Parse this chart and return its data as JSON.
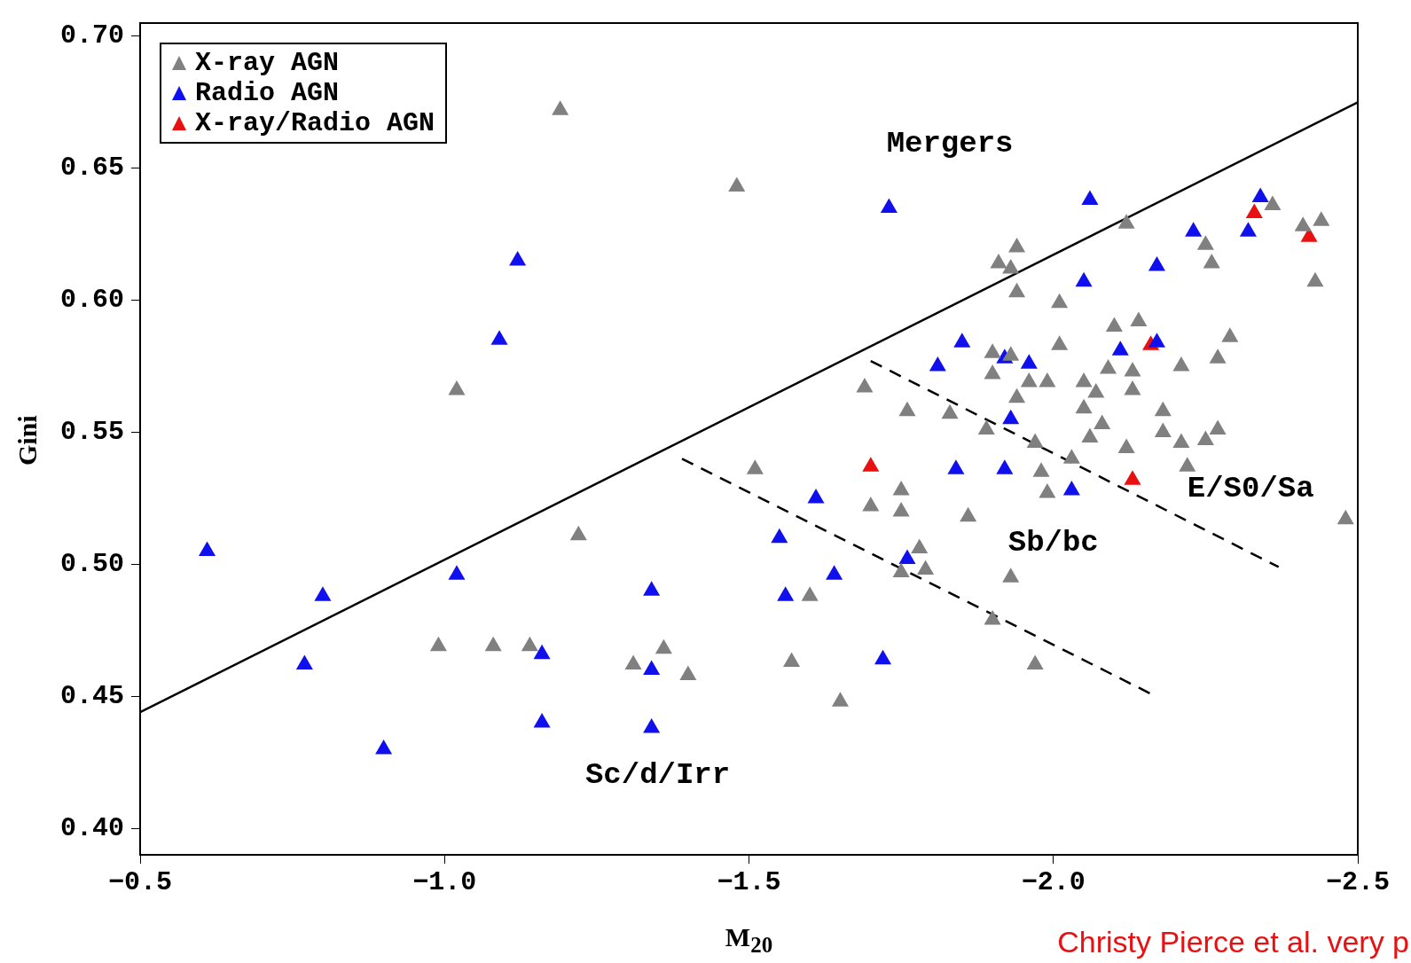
{
  "chart_data": {
    "type": "scatter",
    "xlabel": "M$_{20}$",
    "ylabel": "Gini",
    "xlim": [
      -0.5,
      -2.5
    ],
    "ylim": [
      0.39,
      0.705
    ],
    "xticks": [
      {
        "value": -0.5,
        "label": "−0.5"
      },
      {
        "value": -1.0,
        "label": "−1.0"
      },
      {
        "value": -1.5,
        "label": "−1.5"
      },
      {
        "value": -2.0,
        "label": "−2.0"
      },
      {
        "value": -2.5,
        "label": "−2.5"
      }
    ],
    "yticks": [
      {
        "value": 0.4,
        "label": "0.40"
      },
      {
        "value": 0.45,
        "label": "0.45"
      },
      {
        "value": 0.5,
        "label": "0.50"
      },
      {
        "value": 0.55,
        "label": "0.55"
      },
      {
        "value": 0.6,
        "label": "0.60"
      },
      {
        "value": 0.65,
        "label": "0.65"
      },
      {
        "value": 0.7,
        "label": "0.70"
      }
    ],
    "grid": false,
    "legend": "top left",
    "marker": "triangle",
    "series": [
      {
        "name": "X-ray AGN",
        "color": "#808080",
        "x": [
          -1.19,
          -1.48,
          -1.02,
          -0.99,
          -1.08,
          -1.14,
          -1.31,
          -1.36,
          -1.4,
          -1.22,
          -1.51,
          -1.57,
          -1.6,
          -1.65,
          -1.69,
          -1.7,
          -1.75,
          -1.75,
          -1.76,
          -1.78,
          -1.79,
          -1.75,
          -1.83,
          -1.86,
          -1.89,
          -1.9,
          -1.9,
          -1.9,
          -1.91,
          -1.94,
          -1.93,
          -1.94,
          -1.93,
          -1.94,
          -1.96,
          -1.93,
          -1.97,
          -1.99,
          -1.98,
          -1.99,
          -1.97,
          -2.01,
          -2.01,
          -2.03,
          -2.05,
          -2.05,
          -2.06,
          -2.08,
          -2.07,
          -2.09,
          -2.1,
          -2.13,
          -2.13,
          -2.14,
          -2.12,
          -2.12,
          -2.18,
          -2.18,
          -2.21,
          -2.21,
          -2.22,
          -2.25,
          -2.27,
          -2.27,
          -2.29,
          -2.25,
          -2.26,
          -2.36,
          -2.41,
          -2.44,
          -2.43,
          -2.48
        ],
        "values": [
          0.672,
          0.643,
          0.566,
          0.469,
          0.469,
          0.469,
          0.462,
          0.468,
          0.458,
          0.511,
          0.536,
          0.463,
          0.488,
          0.448,
          0.567,
          0.522,
          0.528,
          0.52,
          0.558,
          0.506,
          0.498,
          0.497,
          0.557,
          0.518,
          0.551,
          0.572,
          0.58,
          0.479,
          0.614,
          0.62,
          0.612,
          0.603,
          0.579,
          0.563,
          0.569,
          0.495,
          0.546,
          0.569,
          0.535,
          0.527,
          0.462,
          0.583,
          0.599,
          0.54,
          0.559,
          0.569,
          0.548,
          0.553,
          0.565,
          0.574,
          0.59,
          0.566,
          0.573,
          0.592,
          0.544,
          0.629,
          0.558,
          0.55,
          0.575,
          0.546,
          0.537,
          0.547,
          0.551,
          0.578,
          0.586,
          0.621,
          0.614,
          0.636,
          0.628,
          0.63,
          0.607,
          0.517
        ]
      },
      {
        "name": "Radio AGN",
        "color": "#1010ee",
        "x": [
          -0.61,
          -0.8,
          -0.77,
          -0.9,
          -1.02,
          -1.12,
          -1.09,
          -1.16,
          -1.16,
          -1.34,
          -1.34,
          -1.34,
          -1.73,
          -1.55,
          -1.56,
          -1.61,
          -1.64,
          -1.72,
          -1.76,
          -1.84,
          -1.85,
          -1.81,
          -1.92,
          -1.93,
          -1.92,
          -1.96,
          -2.06,
          -2.05,
          -2.03,
          -2.11,
          -2.17,
          -2.17,
          -2.23,
          -2.32,
          -2.34
        ],
        "values": [
          0.505,
          0.488,
          0.462,
          0.43,
          0.496,
          0.615,
          0.585,
          0.466,
          0.44,
          0.49,
          0.46,
          0.438,
          0.635,
          0.51,
          0.488,
          0.525,
          0.496,
          0.464,
          0.502,
          0.536,
          0.584,
          0.575,
          0.578,
          0.555,
          0.536,
          0.576,
          0.638,
          0.607,
          0.528,
          0.581,
          0.613,
          0.584,
          0.626,
          0.626,
          0.639
        ]
      },
      {
        "name": "X-ray/Radio AGN",
        "color": "#e81010",
        "x": [
          -1.7,
          -2.13,
          -2.16,
          -2.33,
          -2.42
        ],
        "values": [
          0.537,
          0.532,
          0.583,
          0.633,
          0.624
        ]
      },
      {
        "type": "line",
        "color": "#000000",
        "line_style": "solid",
        "marker": "none",
        "x": [
          -0.5,
          -2.5
        ],
        "values": [
          0.444,
          0.675
        ]
      },
      {
        "type": "line",
        "color": "#000000",
        "line_style": "dashed",
        "marker": "none",
        "x": [
          -1.39,
          -2.16
        ],
        "values": [
          0.54,
          0.451
        ]
      },
      {
        "type": "line",
        "color": "#000000",
        "line_style": "dashed",
        "marker": "none",
        "x": [
          -1.7,
          -2.37
        ],
        "values": [
          0.577,
          0.499
        ]
      }
    ],
    "annotations": [
      "Mergers",
      "Sc/d/Irr",
      "Sb/bc",
      "E/S0/Sa",
      "Christy Pierce et al. very p"
    ]
  }
}
